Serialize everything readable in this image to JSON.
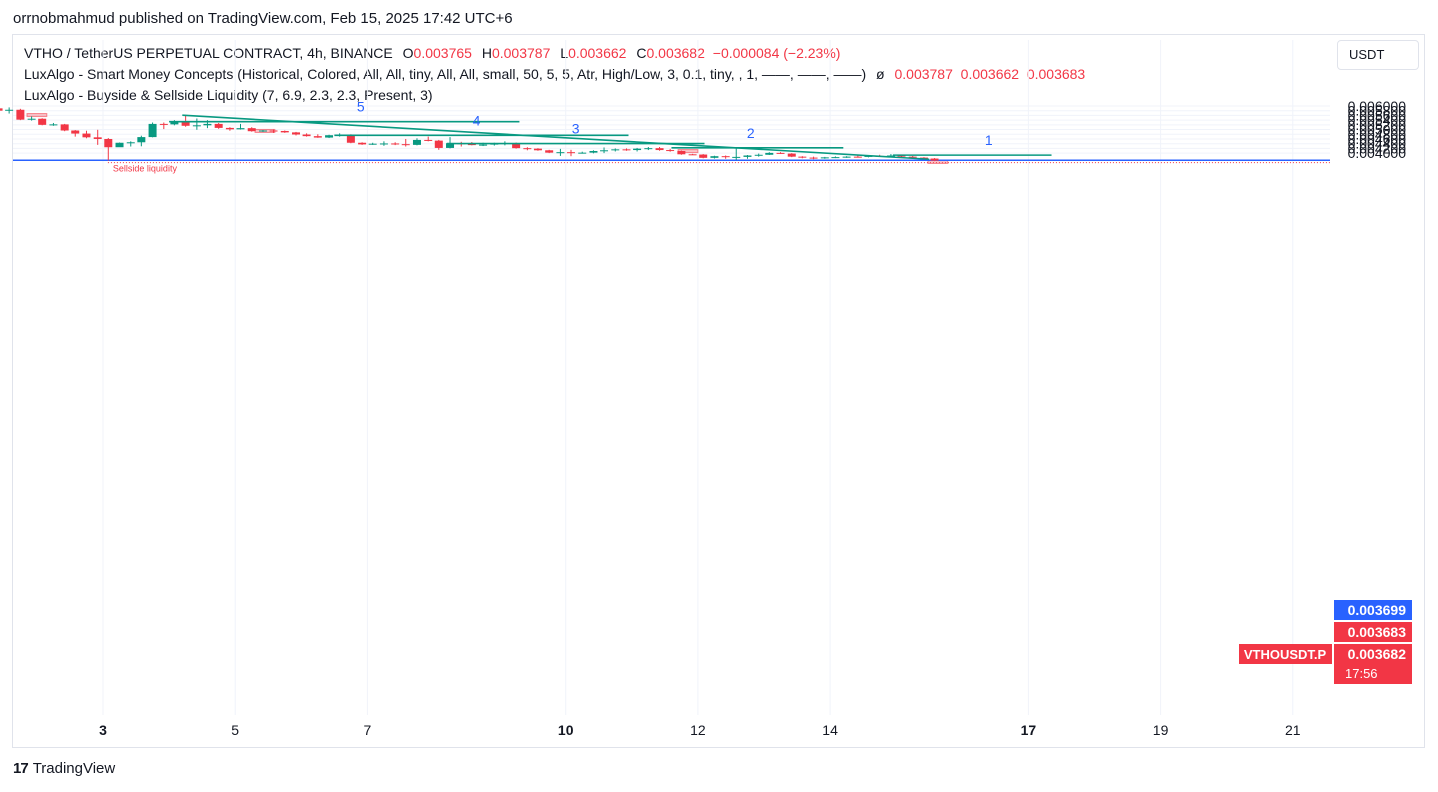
{
  "publisher_line": "orrnobmahmud published on TradingView.com, Feb 15, 2025 17:42 UTC+6",
  "legend": {
    "symbol": "VTHO / TetherUS PERPETUAL CONTRACT, 4h, BINANCE",
    "ohlc": [
      {
        "k": "O",
        "v": "0.003765"
      },
      {
        "k": "H",
        "v": "0.003787"
      },
      {
        "k": "L",
        "v": "0.003662"
      },
      {
        "k": "C",
        "v": "0.003682"
      }
    ],
    "change": "−0.000084 (−2.23%)",
    "indicator1": "LuxAlgo - Smart Money Concepts (Historical, Colored, All, All, tiny, All, All, small, 50, 5, 5, Atr, High/Low, 3, 0.1, tiny, , 1, ——, ——, ——)",
    "indicator1_glyph": "ø",
    "indicator1_values": "0.003787  0.003662  0.003683",
    "indicator2": "LuxAlgo - Buyside & Sellside Liquidity (7, 6.9, 2.3, 2.3, Present, 3)"
  },
  "currency_button": "USDT",
  "brand": {
    "mark": "17",
    "name": "TradingView"
  },
  "colors": {
    "up": "#089981",
    "down": "#f23645",
    "line": "#089981",
    "liquidity": "#2962ff",
    "label_blue": "#2962ff"
  },
  "chart_data": {
    "type": "candlestick",
    "timeframe": "4h",
    "ylim": [
      0.00345,
      0.00605
    ],
    "y_ticks": [
      "0.006000",
      "0.005800",
      "0.005600",
      "0.005400",
      "0.005200",
      "0.005000",
      "0.004800",
      "0.004600",
      "0.004400",
      "0.004200",
      "0.004000"
    ],
    "x_ticks": [
      {
        "label": "3",
        "day": 3,
        "bold": true
      },
      {
        "label": "5",
        "day": 5,
        "bold": false
      },
      {
        "label": "7",
        "day": 7,
        "bold": false
      },
      {
        "label": "10",
        "day": 10,
        "bold": true
      },
      {
        "label": "12",
        "day": 12,
        "bold": false
      },
      {
        "label": "14",
        "day": 14,
        "bold": false
      },
      {
        "label": "17",
        "day": 17,
        "bold": true
      },
      {
        "label": "19",
        "day": 19,
        "bold": false
      },
      {
        "label": "21",
        "day": 21,
        "bold": false
      }
    ],
    "candles": [
      [
        1.25,
        0.006,
        0.00605,
        0.00585,
        0.0059
      ],
      [
        1.42,
        0.0059,
        0.00598,
        0.00577,
        0.0058
      ],
      [
        1.58,
        0.0058,
        0.00594,
        0.00568,
        0.00584
      ],
      [
        1.75,
        0.00584,
        0.00588,
        0.0054,
        0.00542
      ],
      [
        1.92,
        0.00542,
        0.00556,
        0.00538,
        0.00546
      ],
      [
        2.08,
        0.00546,
        0.00548,
        0.00518,
        0.0052
      ],
      [
        2.25,
        0.0052,
        0.00528,
        0.00516,
        0.00522
      ],
      [
        2.42,
        0.00522,
        0.00524,
        0.00493,
        0.00496
      ],
      [
        2.58,
        0.00496,
        0.00498,
        0.0047,
        0.00483
      ],
      [
        2.75,
        0.00483,
        0.00495,
        0.00463,
        0.00467
      ],
      [
        2.92,
        0.00467,
        0.00499,
        0.00435,
        0.0046
      ],
      [
        3.08,
        0.0046,
        0.00464,
        0.00368,
        0.00425
      ],
      [
        3.25,
        0.00425,
        0.00445,
        0.00426,
        0.00444
      ],
      [
        3.42,
        0.00444,
        0.0045,
        0.00428,
        0.00446
      ],
      [
        3.58,
        0.00446,
        0.00474,
        0.00429,
        0.00468
      ],
      [
        3.75,
        0.00468,
        0.0053,
        0.00467,
        0.00524
      ],
      [
        3.92,
        0.00524,
        0.0053,
        0.00502,
        0.00522
      ],
      [
        4.08,
        0.00522,
        0.0054,
        0.00518,
        0.00534
      ],
      [
        4.25,
        0.00534,
        0.0056,
        0.00512,
        0.00516
      ],
      [
        4.42,
        0.00516,
        0.00547,
        0.00499,
        0.00518
      ],
      [
        4.58,
        0.00518,
        0.0054,
        0.00506,
        0.00524
      ],
      [
        4.75,
        0.00524,
        0.00528,
        0.00503,
        0.00507
      ],
      [
        4.92,
        0.00507,
        0.0051,
        0.00495,
        0.00501
      ],
      [
        5.08,
        0.00501,
        0.00524,
        0.005,
        0.00506
      ],
      [
        5.25,
        0.00506,
        0.0051,
        0.00491,
        0.00493
      ],
      [
        5.42,
        0.00493,
        0.00498,
        0.0049,
        0.00496
      ],
      [
        5.58,
        0.00496,
        0.005,
        0.00486,
        0.00494
      ],
      [
        5.75,
        0.00494,
        0.00496,
        0.00486,
        0.00488
      ],
      [
        5.92,
        0.00488,
        0.0049,
        0.00475,
        0.00479
      ],
      [
        6.08,
        0.00479,
        0.00484,
        0.0047,
        0.00472
      ],
      [
        6.25,
        0.00472,
        0.0048,
        0.00465,
        0.00466
      ],
      [
        6.42,
        0.00466,
        0.00478,
        0.00464,
        0.00476
      ],
      [
        6.58,
        0.00476,
        0.00484,
        0.0047,
        0.00478
      ],
      [
        6.75,
        0.00478,
        0.0048,
        0.00442,
        0.00444
      ],
      [
        6.92,
        0.00444,
        0.00446,
        0.00435,
        0.00437
      ],
      [
        7.08,
        0.00437,
        0.00444,
        0.00435,
        0.0044
      ],
      [
        7.25,
        0.0044,
        0.0045,
        0.00431,
        0.00441
      ],
      [
        7.42,
        0.00441,
        0.00446,
        0.00434,
        0.00438
      ],
      [
        7.58,
        0.00438,
        0.0046,
        0.00428,
        0.00435
      ],
      [
        7.75,
        0.00435,
        0.00463,
        0.00433,
        0.00456
      ],
      [
        7.92,
        0.00456,
        0.0047,
        0.0045,
        0.00453
      ],
      [
        8.08,
        0.00453,
        0.00456,
        0.00414,
        0.00422
      ],
      [
        8.25,
        0.00422,
        0.00468,
        0.0042,
        0.00442
      ],
      [
        8.42,
        0.00442,
        0.00448,
        0.00428,
        0.00439
      ],
      [
        8.58,
        0.00439,
        0.00447,
        0.00433,
        0.00434
      ],
      [
        8.75,
        0.00434,
        0.00444,
        0.0043,
        0.00436
      ],
      [
        8.92,
        0.00436,
        0.00444,
        0.00432,
        0.00441
      ],
      [
        9.08,
        0.00441,
        0.0045,
        0.00433,
        0.00443
      ],
      [
        9.25,
        0.00443,
        0.00445,
        0.00419,
        0.00421
      ],
      [
        9.42,
        0.00421,
        0.00425,
        0.00412,
        0.00419
      ],
      [
        9.58,
        0.00419,
        0.00421,
        0.0041,
        0.00412
      ],
      [
        9.75,
        0.00412,
        0.00414,
        0.004,
        0.00402
      ],
      [
        9.92,
        0.00402,
        0.00418,
        0.00388,
        0.00404
      ],
      [
        10.08,
        0.00404,
        0.00414,
        0.00387,
        0.004
      ],
      [
        10.25,
        0.004,
        0.00406,
        0.00398,
        0.00402
      ],
      [
        10.42,
        0.00402,
        0.00412,
        0.00399,
        0.00409
      ],
      [
        10.58,
        0.00409,
        0.00424,
        0.004,
        0.00412
      ],
      [
        10.75,
        0.00412,
        0.0042,
        0.00407,
        0.00416
      ],
      [
        10.92,
        0.00416,
        0.0042,
        0.0041,
        0.00413
      ],
      [
        11.08,
        0.00413,
        0.00422,
        0.00407,
        0.00419
      ],
      [
        11.25,
        0.00419,
        0.00426,
        0.00413,
        0.00421
      ],
      [
        11.42,
        0.00421,
        0.00426,
        0.0041,
        0.00413
      ],
      [
        11.58,
        0.00413,
        0.00418,
        0.00406,
        0.00409
      ],
      [
        11.75,
        0.00409,
        0.00411,
        0.00393,
        0.00395
      ],
      [
        11.92,
        0.00395,
        0.00397,
        0.00392,
        0.00394
      ],
      [
        12.08,
        0.00394,
        0.00396,
        0.00378,
        0.0038
      ],
      [
        12.25,
        0.0038,
        0.00389,
        0.00377,
        0.00387
      ],
      [
        12.42,
        0.00387,
        0.0039,
        0.00376,
        0.00383
      ],
      [
        12.58,
        0.00383,
        0.00424,
        0.0037,
        0.00384
      ],
      [
        12.75,
        0.00384,
        0.00392,
        0.00376,
        0.0039
      ],
      [
        12.92,
        0.0039,
        0.00398,
        0.00385,
        0.00393
      ],
      [
        13.08,
        0.00393,
        0.00404,
        0.00392,
        0.00401
      ],
      [
        13.25,
        0.00401,
        0.00404,
        0.00397,
        0.00398
      ],
      [
        13.42,
        0.00398,
        0.004,
        0.00383,
        0.00385
      ],
      [
        13.58,
        0.00385,
        0.00387,
        0.00378,
        0.00381
      ],
      [
        13.75,
        0.00381,
        0.00385,
        0.00374,
        0.0038
      ],
      [
        13.92,
        0.0038,
        0.00384,
        0.00376,
        0.00382
      ],
      [
        14.08,
        0.00382,
        0.00386,
        0.00379,
        0.00383
      ],
      [
        14.25,
        0.00383,
        0.00387,
        0.0038,
        0.00385
      ],
      [
        14.42,
        0.00385,
        0.0039,
        0.00381,
        0.00384
      ],
      [
        14.58,
        0.00384,
        0.00389,
        0.00382,
        0.00388
      ],
      [
        14.75,
        0.00388,
        0.00393,
        0.00385,
        0.00387
      ],
      [
        14.92,
        0.00387,
        0.00396,
        0.00384,
        0.0039
      ],
      [
        15.08,
        0.0039,
        0.00392,
        0.00383,
        0.00385
      ],
      [
        15.25,
        0.00385,
        0.00388,
        0.00378,
        0.00381
      ],
      [
        15.42,
        0.00381,
        0.00383,
        0.00377,
        0.00378
      ],
      [
        15.58,
        0.00377,
        0.00379,
        0.00366,
        0.00368
      ]
    ],
    "trendline": {
      "from": [
        4.2,
        0.00561
      ],
      "to": [
        15.5,
        0.00374
      ]
    },
    "levels": [
      {
        "label": "5",
        "y": 0.005335,
        "x_from": 4.0,
        "x_to": 9.3,
        "label_x": 6.9
      },
      {
        "label": "4",
        "y": 0.004755,
        "x_from": 6.5,
        "x_to": 10.95,
        "label_x": 8.65
      },
      {
        "label": "3",
        "y": 0.004405,
        "x_from": 8.2,
        "x_to": 12.1,
        "label_x": 10.15
      },
      {
        "label": "2",
        "y": 0.004225,
        "x_from": 11.6,
        "x_to": 14.2,
        "label_x": 12.8
      },
      {
        "label": "1",
        "y": 0.003915,
        "x_from": 14.95,
        "x_to": 17.35,
        "label_x": 16.4
      }
    ],
    "supply_boxes": [
      {
        "x0": 1.85,
        "x1": 2.15,
        "y0": 0.00563,
        "y1": 0.00568
      },
      {
        "x0": 5.3,
        "x1": 5.6,
        "y0": 0.004985,
        "y1": 0.005005
      },
      {
        "x0": 11.7,
        "x1": 12.0,
        "y0": 0.0041,
        "y1": 0.00415
      },
      {
        "x0": 15.48,
        "x1": 15.78,
        "y0": 0.00366,
        "y1": 0.00369
      }
    ],
    "liquidity": {
      "y": 0.003695,
      "zone_y": 0.003682,
      "label": "Sellside liquidity",
      "label_x": 3.15
    },
    "price_labels": [
      {
        "text": "0.003699",
        "y": 0.003699,
        "color": "#2962ff"
      },
      {
        "text": "0.003683",
        "y": 0.003683,
        "color": "#f23645"
      },
      {
        "text": "0.003682",
        "y": 0.003682,
        "color": "#f23645",
        "countdown": "17:56"
      }
    ],
    "symbol_tag": "VTHOUSDT.P"
  }
}
